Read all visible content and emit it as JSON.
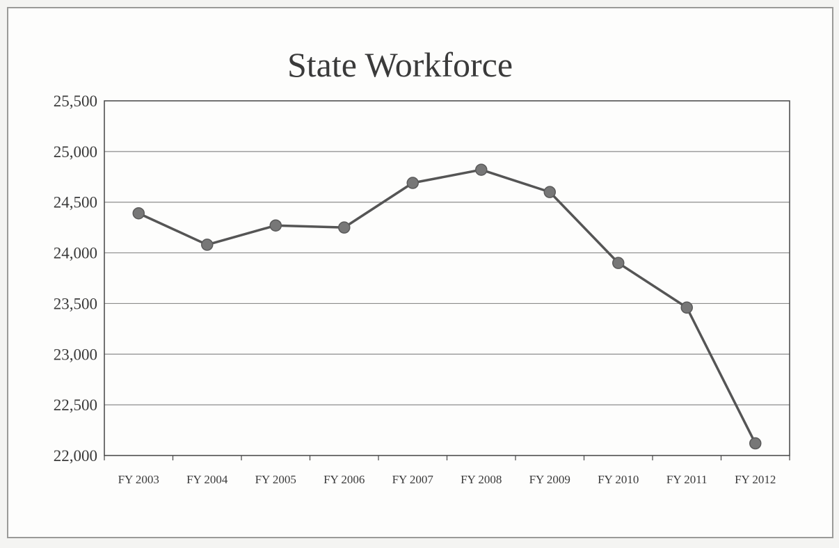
{
  "chart_data": {
    "type": "line",
    "title": "State Workforce",
    "xlabel": "",
    "ylabel": "",
    "categories": [
      "FY 2003",
      "FY 2004",
      "FY 2005",
      "FY 2006",
      "FY 2007",
      "FY 2008",
      "FY 2009",
      "FY 2010",
      "FY 2011",
      "FY 2012"
    ],
    "series": [
      {
        "values": [
          24390,
          24080,
          24270,
          24250,
          24690,
          24820,
          24600,
          23900,
          23460,
          22120
        ]
      }
    ],
    "ylim": [
      22000,
      25500
    ],
    "yticks": [
      22000,
      22500,
      23000,
      23500,
      24000,
      24500,
      25000,
      25500
    ],
    "ytick_labels": [
      "22,000",
      "22,500",
      "23,000",
      "23,500",
      "24,000",
      "24,500",
      "25,000",
      "25,500"
    ],
    "grid": true,
    "legend": "none",
    "colors": {
      "line": "#555555",
      "marker": "#777777",
      "grid": "#8c8c8c",
      "axis": "#444444"
    }
  }
}
